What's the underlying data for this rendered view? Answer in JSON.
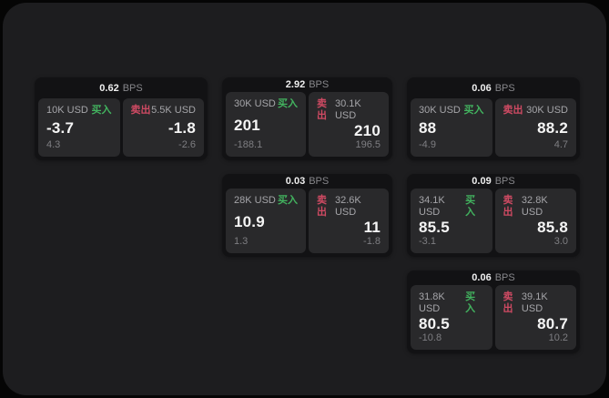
{
  "colors": {
    "buy_accent": "#42b35f",
    "sell_accent": "#cf4a63",
    "frame_bg": "#1d1d1f",
    "card_bg": "#121214",
    "panel_bg": "#29292b"
  },
  "labels": {
    "bps_unit": "BPS",
    "buy": "买入",
    "sell": "卖出"
  },
  "cards": [
    {
      "bps": "0.62",
      "grid": {
        "row": 1,
        "col": 1
      },
      "buy": {
        "notional": "10K USD",
        "price": "-3.7",
        "delta": "4.3"
      },
      "sell": {
        "notional": "5.5K USD",
        "price": "-1.8",
        "delta": "-2.6"
      }
    },
    {
      "bps": "2.92",
      "grid": {
        "row": 1,
        "col": 2
      },
      "buy": {
        "notional": "30K USD",
        "price": "201",
        "delta": "-188.1"
      },
      "sell": {
        "notional": "30.1K USD",
        "price": "210",
        "delta": "196.5"
      }
    },
    {
      "bps": "0.06",
      "grid": {
        "row": 1,
        "col": 3
      },
      "buy": {
        "notional": "30K USD",
        "price": "88",
        "delta": "-4.9"
      },
      "sell": {
        "notional": "30K USD",
        "price": "88.2",
        "delta": "4.7"
      }
    },
    {
      "bps": "0.03",
      "grid": {
        "row": 2,
        "col": 2
      },
      "buy": {
        "notional": "28K USD",
        "price": "10.9",
        "delta": "1.3"
      },
      "sell": {
        "notional": "32.6K USD",
        "price": "11",
        "delta": "-1.8"
      }
    },
    {
      "bps": "0.09",
      "grid": {
        "row": 2,
        "col": 3
      },
      "buy": {
        "notional": "34.1K USD",
        "price": "85.5",
        "delta": "-3.1"
      },
      "sell": {
        "notional": "32.8K USD",
        "price": "85.8",
        "delta": "3.0"
      }
    },
    {
      "bps": "0.06",
      "grid": {
        "row": 3,
        "col": 3
      },
      "buy": {
        "notional": "31.8K USD",
        "price": "80.5",
        "delta": "-10.8"
      },
      "sell": {
        "notional": "39.1K USD",
        "price": "80.7",
        "delta": "10.2"
      }
    }
  ]
}
